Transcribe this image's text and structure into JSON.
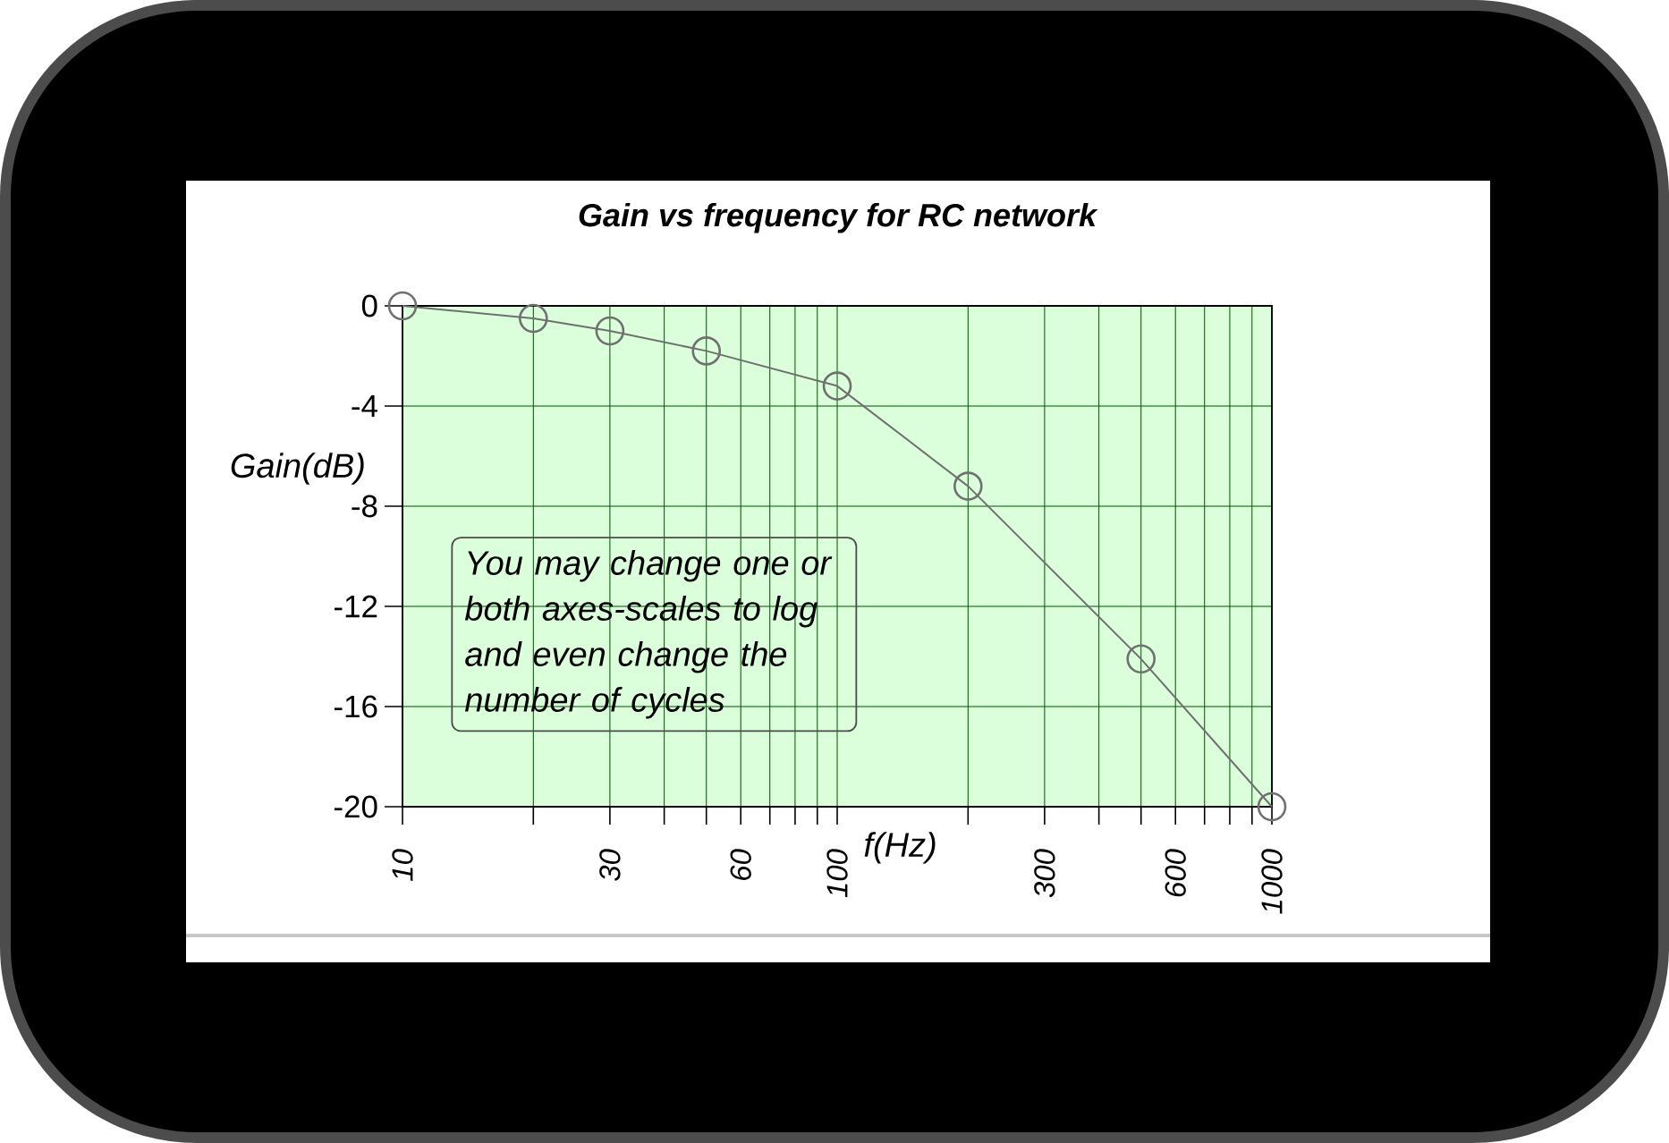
{
  "chart_data": {
    "type": "line",
    "title": "Gain vs frequency for RC network",
    "xlabel": "f(Hz)",
    "ylabel": "Gain(dB)",
    "annotations": [
      "You may change one or both axes-scales to log and even change the number of cycles"
    ],
    "x": [
      10,
      20,
      30,
      50,
      100,
      200,
      500,
      1000
    ],
    "series": [
      {
        "color": "#707070",
        "values": [
          0,
          -0.5,
          -1,
          -1.8,
          -3.2,
          -7.2,
          -14.1,
          -20
        ]
      }
    ],
    "log": "x",
    "xlim": [
      10,
      1000
    ],
    "ylim": [
      -20,
      0
    ],
    "xticks": [
      10,
      {
        "value": 20,
        "label": null
      },
      30,
      {
        "value": 40,
        "label": null
      },
      {
        "value": 50,
        "label": null
      },
      60,
      {
        "value": 70,
        "label": null
      },
      {
        "value": 80,
        "label": null
      },
      {
        "value": 90,
        "label": null
      },
      100,
      {
        "value": 200,
        "label": null
      },
      300,
      {
        "value": 400,
        "label": null
      },
      {
        "value": 500,
        "label": null
      },
      600,
      {
        "value": 700,
        "label": null
      },
      {
        "value": 800,
        "label": null
      },
      {
        "value": 900,
        "label": null
      },
      1000
    ],
    "yticks": [
      -20,
      -16,
      -12,
      -8,
      -4,
      0
    ],
    "grid": true,
    "marker": "circle"
  }
}
